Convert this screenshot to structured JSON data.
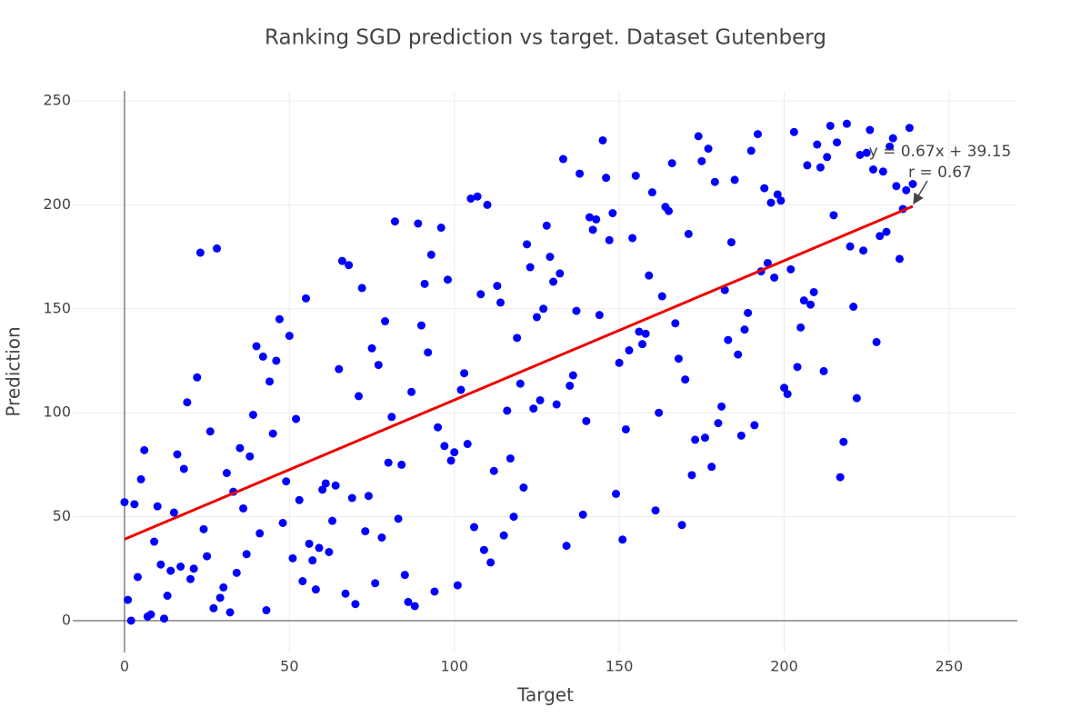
{
  "chart_data": {
    "type": "scatter",
    "title": "Ranking SGD prediction vs target. Dataset Gutenberg",
    "x_label": "Target",
    "y_label": "Prediction",
    "xlim": [
      -15.7,
      270.7
    ],
    "ylim": [
      -15.3,
      254.8
    ],
    "xticks": [
      0,
      50,
      100,
      150,
      200,
      250
    ],
    "yticks": [
      0,
      50,
      100,
      150,
      200,
      250
    ],
    "grid": true,
    "series": [
      {
        "color": "#0000ff",
        "x": [
          0,
          1,
          2,
          3,
          4,
          5,
          6,
          7,
          8,
          9,
          10,
          11,
          12,
          13,
          14,
          15,
          16,
          17,
          18,
          19,
          20,
          21,
          22,
          23,
          24,
          25,
          26,
          27,
          28,
          29,
          30,
          31,
          32,
          33,
          34,
          35,
          36,
          37,
          38,
          39,
          40,
          41,
          42,
          43,
          44,
          45,
          46,
          47,
          48,
          49,
          50,
          51,
          52,
          53,
          54,
          55,
          56,
          57,
          58,
          59,
          60,
          61,
          62,
          63,
          64,
          65,
          66,
          67,
          68,
          69,
          70,
          71,
          72,
          73,
          74,
          75,
          76,
          77,
          78,
          79,
          80,
          81,
          82,
          83,
          84,
          85,
          86,
          87,
          88,
          89,
          90,
          91,
          92,
          93,
          94,
          95,
          96,
          97,
          98,
          99,
          100,
          101,
          102,
          103,
          104,
          105,
          106,
          107,
          108,
          109,
          110,
          111,
          112,
          113,
          114,
          115,
          116,
          117,
          118,
          119,
          120,
          121,
          122,
          123,
          124,
          125,
          126,
          127,
          128,
          129,
          130,
          131,
          132,
          133,
          134,
          135,
          136,
          137,
          138,
          139,
          140,
          141,
          142,
          143,
          144,
          145,
          146,
          147,
          148,
          149,
          150,
          151,
          152,
          153,
          154,
          155,
          156,
          157,
          158,
          159,
          160,
          161,
          162,
          163,
          164,
          165,
          166,
          167,
          168,
          169,
          170,
          171,
          172,
          173,
          174,
          175,
          176,
          177,
          178,
          179,
          180,
          181,
          182,
          183,
          184,
          185,
          186,
          187,
          188,
          189,
          190,
          191,
          192,
          193,
          194,
          195,
          196,
          197,
          198,
          199,
          200,
          201,
          202,
          203,
          204,
          205,
          206,
          207,
          208,
          209,
          210,
          211,
          212,
          213,
          214,
          215,
          216,
          217,
          218,
          219,
          220,
          221,
          222,
          223,
          224,
          225,
          226,
          227,
          228,
          229,
          230,
          231,
          232,
          233,
          234,
          235,
          236,
          237,
          238,
          239
        ],
        "values": [
          57,
          10,
          0,
          56,
          21,
          68,
          82,
          2,
          3,
          38,
          55,
          27,
          1,
          12,
          24,
          52,
          80,
          26,
          73,
          105,
          20,
          25,
          117,
          177,
          44,
          31,
          91,
          6,
          179,
          11,
          16,
          71,
          4,
          62,
          23,
          83,
          54,
          32,
          79,
          99,
          132,
          42,
          127,
          5,
          115,
          90,
          125,
          145,
          47,
          67,
          137,
          30,
          97,
          58,
          19,
          155,
          37,
          29,
          15,
          35,
          63,
          66,
          33,
          48,
          65,
          121,
          173,
          13,
          171,
          59,
          8,
          108,
          160,
          43,
          60,
          131,
          18,
          123,
          40,
          144,
          76,
          98,
          192,
          49,
          75,
          22,
          9,
          110,
          7,
          191,
          142,
          162,
          129,
          176,
          14,
          93,
          189,
          84,
          164,
          77,
          81,
          17,
          111,
          119,
          85,
          203,
          45,
          204,
          157,
          34,
          200,
          28,
          72,
          161,
          153,
          41,
          101,
          78,
          50,
          136,
          114,
          64,
          181,
          170,
          102,
          146,
          106,
          150,
          190,
          175,
          163,
          104,
          167,
          222,
          36,
          113,
          118,
          149,
          215,
          51,
          96,
          194,
          188,
          193,
          147,
          231,
          213,
          183,
          196,
          61,
          124,
          39,
          92,
          130,
          184,
          214,
          139,
          133,
          138,
          166,
          206,
          53,
          100,
          156,
          199,
          197,
          220,
          143,
          126,
          46,
          116,
          186,
          70,
          87,
          233,
          221,
          88,
          227,
          74,
          211,
          95,
          103,
          159,
          135,
          182,
          212,
          128,
          89,
          140,
          148,
          226,
          94,
          234,
          168,
          208,
          172,
          201,
          165,
          205,
          202,
          112,
          109,
          169,
          235,
          122,
          141,
          154,
          219,
          152,
          158,
          229,
          218,
          120,
          223,
          238,
          195,
          230,
          69,
          86,
          239,
          180,
          151,
          107,
          224,
          178,
          225,
          236,
          217,
          134,
          185,
          216,
          187,
          228,
          232,
          209,
          174,
          198,
          207,
          237,
          210
        ]
      }
    ],
    "trendline": {
      "slope": 0.67,
      "intercept": 39.15,
      "color": "#ee0000"
    },
    "annotations": [
      "y = 0.67x + 39.15",
      "r = 0.67"
    ]
  }
}
